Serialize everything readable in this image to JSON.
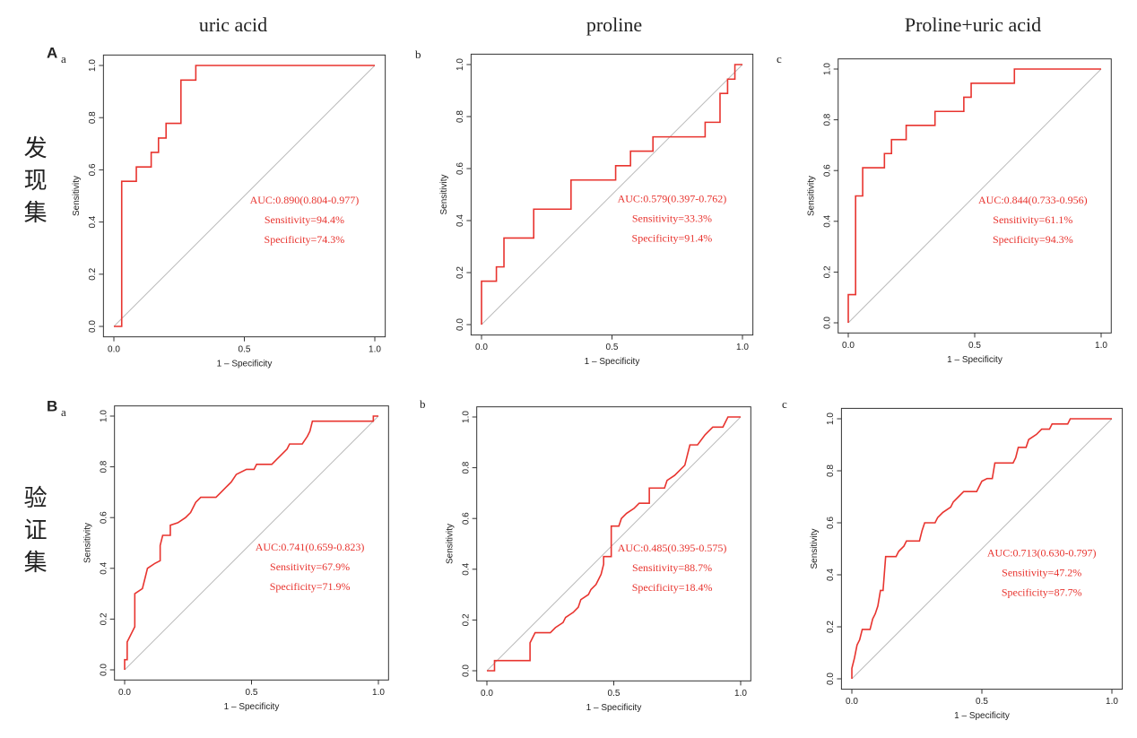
{
  "figure": {
    "columns": [
      "uric acid",
      "proline",
      "Proline+uric acid"
    ],
    "rows": [
      "发现集",
      "验证集"
    ],
    "panels": [
      "A",
      "B"
    ]
  },
  "chart_data": [
    {
      "type": "line",
      "label": "a",
      "xlabel": "1 – Specificity",
      "ylabel": "Sensitivity",
      "color": "#e8342f",
      "xlim": [
        0,
        1
      ],
      "ylim": [
        0,
        1
      ],
      "xticks": [
        {
          "value": 0,
          "label": "0.0"
        },
        0.5,
        {
          "value": 1,
          "label": "1.0"
        }
      ],
      "yticks": [
        {
          "value": 0,
          "label": "0.0"
        },
        0.2,
        0.4,
        0.6,
        0.8,
        {
          "value": 1,
          "label": "1.0"
        }
      ],
      "x": [
        0,
        0.03,
        0.03,
        0.086,
        0.086,
        0.143,
        0.143,
        0.171,
        0.171,
        0.2,
        0.2,
        0.257,
        0.257,
        0.314,
        0.314,
        1
      ],
      "values": [
        0,
        0,
        0.556,
        0.556,
        0.611,
        0.611,
        0.667,
        0.667,
        0.722,
        0.722,
        0.778,
        0.778,
        0.944,
        0.944,
        1,
        1
      ],
      "annotations": [
        "AUC:0.890(0.804-0.977)",
        "Sensitivity=94.4%",
        "Specificity=74.3%"
      ]
    },
    {
      "type": "line",
      "label": "b",
      "xlabel": "1 – Specificity",
      "ylabel": "Sensitivity",
      "color": "#e8342f",
      "xlim": [
        0,
        1
      ],
      "ylim": [
        0,
        1
      ],
      "xticks": [
        {
          "value": 0,
          "label": "0.0"
        },
        0.5,
        {
          "value": 1,
          "label": "1.0"
        }
      ],
      "yticks": [
        {
          "value": 0,
          "label": "0.0"
        },
        0.2,
        0.4,
        0.6,
        0.8,
        {
          "value": 1,
          "label": "1.0"
        }
      ],
      "x": [
        0,
        0,
        0.057,
        0.057,
        0.086,
        0.086,
        0.2,
        0.2,
        0.343,
        0.343,
        0.514,
        0.514,
        0.571,
        0.571,
        0.657,
        0.657,
        0.857,
        0.857,
        0.914,
        0.914,
        0.943,
        0.943,
        0.971,
        0.971,
        1
      ],
      "values": [
        0,
        0.167,
        0.167,
        0.222,
        0.222,
        0.333,
        0.333,
        0.444,
        0.444,
        0.556,
        0.556,
        0.611,
        0.611,
        0.667,
        0.667,
        0.722,
        0.722,
        0.778,
        0.778,
        0.889,
        0.889,
        0.944,
        0.944,
        1,
        1
      ],
      "annotations": [
        "AUC:0.579(0.397-0.762)",
        "Sensitivity=33.3%",
        "Specificity=91.4%"
      ]
    },
    {
      "type": "line",
      "label": "c",
      "xlabel": "1 – Specificity",
      "ylabel": "Sensitivity",
      "color": "#e8342f",
      "xlim": [
        0,
        1
      ],
      "ylim": [
        0,
        1
      ],
      "xticks": [
        {
          "value": 0,
          "label": "0.0"
        },
        0.5,
        {
          "value": 1,
          "label": "1.0"
        }
      ],
      "yticks": [
        {
          "value": 0,
          "label": "0.0"
        },
        0.2,
        0.4,
        0.6,
        0.8,
        {
          "value": 1,
          "label": "1.0"
        }
      ],
      "x": [
        0,
        0,
        0.029,
        0.029,
        0.057,
        0.057,
        0.143,
        0.143,
        0.171,
        0.171,
        0.229,
        0.229,
        0.343,
        0.343,
        0.457,
        0.457,
        0.486,
        0.486,
        0.657,
        0.657,
        1
      ],
      "values": [
        0,
        0.111,
        0.111,
        0.5,
        0.5,
        0.611,
        0.611,
        0.667,
        0.667,
        0.722,
        0.722,
        0.778,
        0.778,
        0.833,
        0.833,
        0.889,
        0.889,
        0.944,
        0.944,
        1,
        1
      ],
      "annotations": [
        "AUC:0.844(0.733-0.956)",
        "Sensitivity=61.1%",
        "Specificity=94.3%"
      ]
    },
    {
      "type": "line",
      "label": "a",
      "xlabel": "1 – Specificity",
      "ylabel": "Sensitivity",
      "color": "#e8342f",
      "xlim": [
        0,
        1
      ],
      "ylim": [
        0,
        1
      ],
      "xticks": [
        {
          "value": 0,
          "label": "0.0"
        },
        0.5,
        {
          "value": 1,
          "label": "1.0"
        }
      ],
      "yticks": [
        {
          "value": 0,
          "label": "0.0"
        },
        0.2,
        0.4,
        0.6,
        0.8,
        {
          "value": 1,
          "label": "1.0"
        }
      ],
      "x": [
        0,
        0,
        0.01,
        0.01,
        0.02,
        0.03,
        0.04,
        0.04,
        0.07,
        0.08,
        0.09,
        0.12,
        0.14,
        0.14,
        0.15,
        0.18,
        0.18,
        0.21,
        0.24,
        0.26,
        0.28,
        0.3,
        0.36,
        0.38,
        0.4,
        0.42,
        0.44,
        0.48,
        0.51,
        0.52,
        0.58,
        0.6,
        0.62,
        0.64,
        0.65,
        0.7,
        0.72,
        0.73,
        0.74,
        0.98,
        0.98,
        1
      ],
      "values": [
        0,
        0.04,
        0.04,
        0.11,
        0.13,
        0.15,
        0.17,
        0.3,
        0.32,
        0.36,
        0.4,
        0.42,
        0.43,
        0.49,
        0.53,
        0.53,
        0.57,
        0.58,
        0.6,
        0.62,
        0.66,
        0.68,
        0.68,
        0.7,
        0.72,
        0.74,
        0.77,
        0.79,
        0.79,
        0.81,
        0.81,
        0.83,
        0.85,
        0.87,
        0.89,
        0.89,
        0.92,
        0.94,
        0.98,
        0.98,
        1,
        1
      ],
      "annotations": [
        "AUC:0.741(0.659-0.823)",
        "Sensitivity=67.9%",
        "Specificity=71.9%"
      ]
    },
    {
      "type": "line",
      "label": "b",
      "xlabel": "1 – Specificity",
      "ylabel": "Sensitivity",
      "color": "#e8342f",
      "xlim": [
        0,
        1
      ],
      "ylim": [
        0,
        1
      ],
      "xticks": [
        {
          "value": 0,
          "label": "0.0"
        },
        0.5,
        {
          "value": 1,
          "label": "1.0"
        }
      ],
      "yticks": [
        {
          "value": 0,
          "label": "0.0"
        },
        0.2,
        0.4,
        0.6,
        0.8,
        {
          "value": 1,
          "label": "1.0"
        }
      ],
      "x": [
        0,
        0.03,
        0.03,
        0.17,
        0.17,
        0.19,
        0.25,
        0.27,
        0.3,
        0.31,
        0.34,
        0.36,
        0.37,
        0.4,
        0.41,
        0.43,
        0.44,
        0.45,
        0.46,
        0.46,
        0.49,
        0.49,
        0.52,
        0.53,
        0.55,
        0.58,
        0.6,
        0.64,
        0.64,
        0.7,
        0.71,
        0.74,
        0.76,
        0.78,
        0.79,
        0.8,
        0.83,
        0.86,
        0.89,
        0.93,
        0.94,
        0.95,
        1
      ],
      "values": [
        0,
        0,
        0.04,
        0.04,
        0.11,
        0.15,
        0.15,
        0.17,
        0.19,
        0.21,
        0.23,
        0.25,
        0.28,
        0.3,
        0.32,
        0.34,
        0.36,
        0.38,
        0.42,
        0.45,
        0.45,
        0.57,
        0.57,
        0.6,
        0.62,
        0.64,
        0.66,
        0.66,
        0.72,
        0.72,
        0.75,
        0.77,
        0.79,
        0.81,
        0.85,
        0.89,
        0.89,
        0.93,
        0.96,
        0.96,
        0.98,
        1,
        1
      ],
      "annotations": [
        "AUC:0.485(0.395-0.575)",
        "Sensitivity=88.7%",
        "Specificity=18.4%"
      ]
    },
    {
      "type": "line",
      "label": "c",
      "xlabel": "1 – Specificity",
      "ylabel": "Sensitivity",
      "color": "#e8342f",
      "xlim": [
        0,
        1
      ],
      "ylim": [
        0,
        1
      ],
      "xticks": [
        {
          "value": 0,
          "label": "0.0"
        },
        0.5,
        {
          "value": 1,
          "label": "1.0"
        }
      ],
      "yticks": [
        {
          "value": 0,
          "label": "0.0"
        },
        0.2,
        0.4,
        0.6,
        0.8,
        {
          "value": 1,
          "label": "1.0"
        }
      ],
      "x": [
        0,
        0,
        0.01,
        0.02,
        0.03,
        0.04,
        0.07,
        0.08,
        0.09,
        0.1,
        0.11,
        0.12,
        0.13,
        0.17,
        0.18,
        0.2,
        0.21,
        0.26,
        0.27,
        0.28,
        0.32,
        0.33,
        0.35,
        0.38,
        0.39,
        0.41,
        0.43,
        0.48,
        0.49,
        0.5,
        0.52,
        0.54,
        0.55,
        0.62,
        0.63,
        0.64,
        0.67,
        0.68,
        0.71,
        0.73,
        0.76,
        0.77,
        0.83,
        0.84,
        1
      ],
      "values": [
        0,
        0.04,
        0.08,
        0.13,
        0.15,
        0.19,
        0.19,
        0.23,
        0.25,
        0.28,
        0.34,
        0.34,
        0.47,
        0.47,
        0.49,
        0.51,
        0.53,
        0.53,
        0.57,
        0.6,
        0.6,
        0.62,
        0.64,
        0.66,
        0.68,
        0.7,
        0.72,
        0.72,
        0.74,
        0.76,
        0.77,
        0.77,
        0.83,
        0.83,
        0.85,
        0.89,
        0.89,
        0.92,
        0.94,
        0.96,
        0.96,
        0.98,
        0.98,
        1,
        1
      ],
      "annotations": [
        "AUC:0.713(0.630-0.797)",
        "Sensitivity=47.2%",
        "Specificity=87.7%"
      ]
    }
  ]
}
